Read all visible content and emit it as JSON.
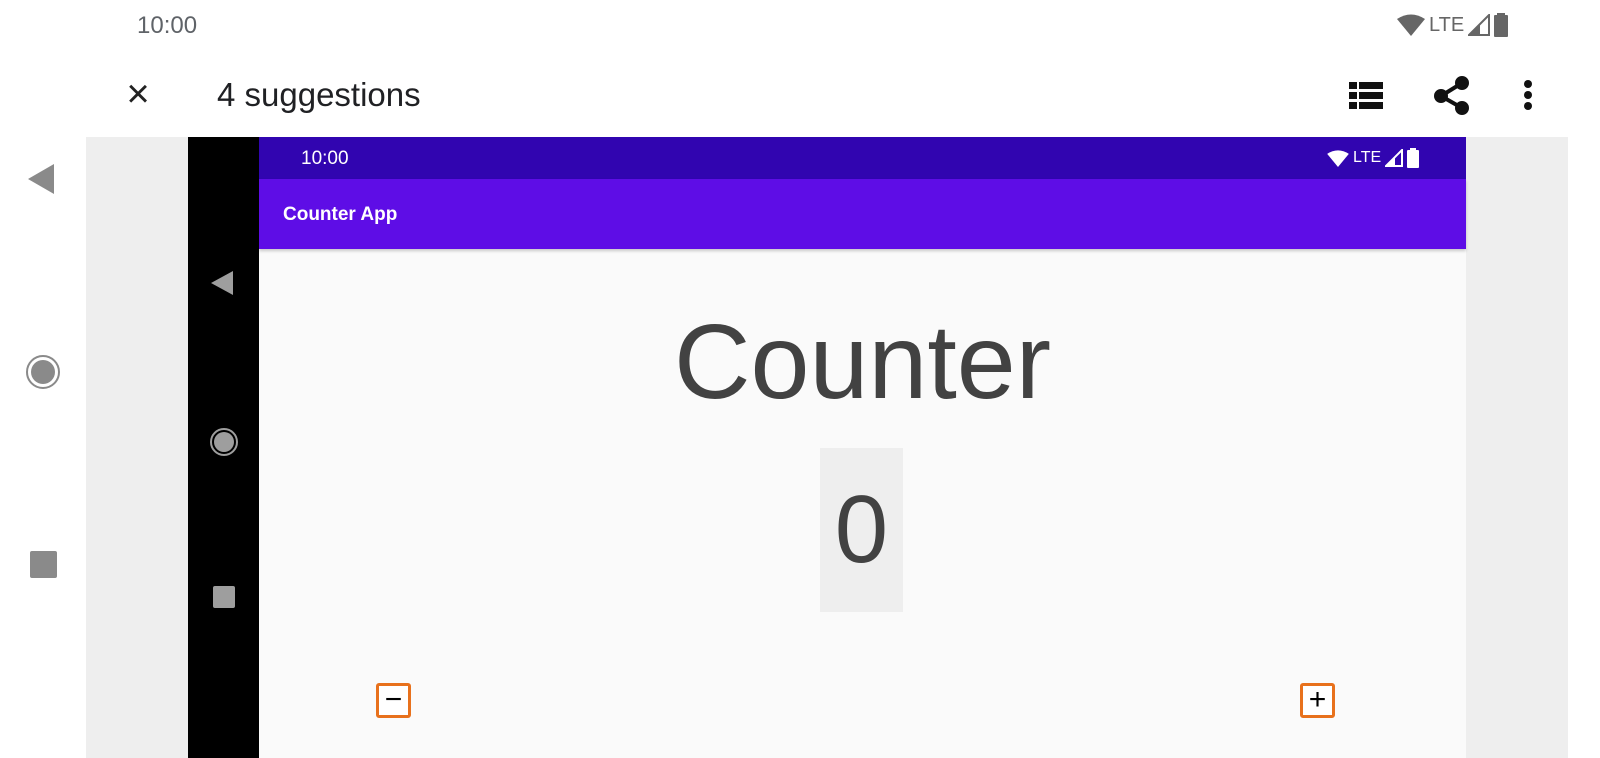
{
  "status_bar": {
    "time": "10:00",
    "network": "LTE"
  },
  "toolbar": {
    "title": "4 suggestions",
    "close_icon": "close-icon",
    "actions": [
      "list-icon",
      "share-icon",
      "more-vert-icon"
    ]
  },
  "nav_buttons": [
    "back-icon",
    "home-icon",
    "recents-icon"
  ],
  "device": {
    "status_bar": {
      "time": "10:00",
      "network": "LTE"
    },
    "app_bar": {
      "title": "Counter App",
      "color": "#6200EE"
    },
    "content": {
      "heading": "Counter",
      "value": "0",
      "decrement_label": "−",
      "increment_label": "+",
      "highlight_color": "#E8711C"
    }
  }
}
